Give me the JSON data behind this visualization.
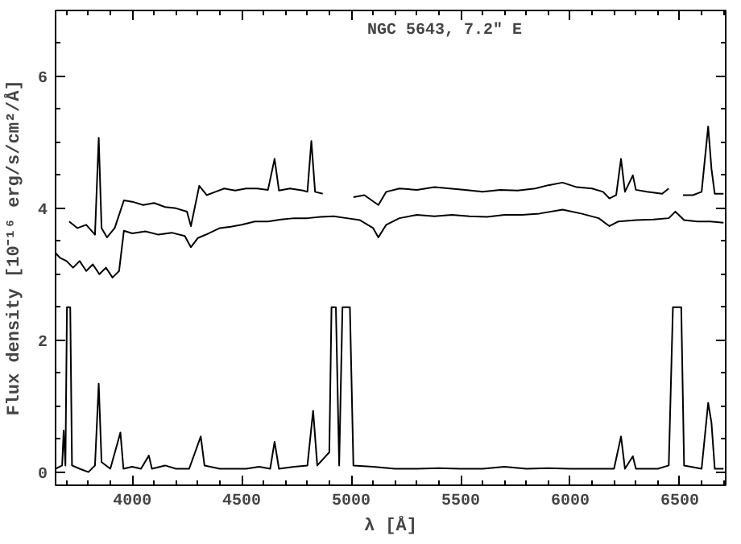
{
  "chart_data": {
    "type": "line",
    "annotations": [
      "NGC 5643, 7.2″ E"
    ],
    "xlabel": "λ [Å]",
    "ylabel": "Flux density [10⁻¹⁶ erg/s/cm²/Å]",
    "xlim": [
      3650,
      6710
    ],
    "ylim": [
      -0.2,
      7
    ],
    "xticks": [
      4000,
      4500,
      5000,
      5500,
      6000,
      6500
    ],
    "yticks": [
      0,
      2,
      4,
      6
    ],
    "grid": false,
    "marker": "none",
    "line_style": "solid",
    "series": [
      {
        "color": "#000000",
        "x": [
          3712,
          3750,
          3790,
          3830,
          3847,
          3860,
          3885,
          3920,
          3962,
          4000,
          4050,
          4100,
          4150,
          4200,
          4250,
          4268,
          4306,
          4340,
          4380,
          4420,
          4470,
          4520,
          4570,
          4620,
          4650,
          4670,
          4720,
          4780,
          4800,
          4818,
          4835,
          4870,
          4910,
          4925,
          4965,
          4990,
          5010,
          5060,
          5124,
          5160,
          5220,
          5300,
          5380,
          5450,
          5520,
          5600,
          5680,
          5760,
          5840,
          5900,
          5965,
          6030,
          6100,
          6150,
          6179,
          6210,
          6232,
          6250,
          6286,
          6300,
          6350,
          6420,
          6450,
          6465,
          6500,
          6515,
          6560,
          6600,
          6630,
          6645,
          6660,
          6700
        ],
        "values": [
          3.8,
          3.7,
          3.75,
          3.6,
          5.07,
          3.7,
          3.56,
          3.7,
          4.12,
          4.1,
          4.05,
          4.08,
          4.02,
          4.0,
          3.95,
          3.73,
          4.34,
          4.2,
          4.25,
          4.3,
          4.27,
          4.3,
          4.3,
          4.28,
          4.75,
          4.27,
          4.3,
          4.27,
          4.25,
          5.02,
          4.25,
          4.22,
          null,
          null,
          null,
          null,
          4.17,
          4.2,
          4.05,
          4.25,
          4.3,
          4.28,
          4.32,
          4.3,
          4.28,
          4.25,
          4.28,
          4.27,
          4.3,
          4.35,
          4.39,
          4.32,
          4.3,
          4.25,
          4.15,
          4.2,
          4.75,
          4.25,
          4.5,
          4.28,
          4.25,
          4.22,
          4.3,
          null,
          null,
          4.2,
          4.2,
          4.25,
          5.24,
          4.6,
          4.22,
          4.22
        ]
      },
      {
        "color": "#000000",
        "x": [
          3650,
          3670,
          3700,
          3730,
          3760,
          3790,
          3820,
          3850,
          3880,
          3910,
          3940,
          3962,
          4000,
          4060,
          4120,
          4180,
          4240,
          4268,
          4300,
          4350,
          4400,
          4450,
          4500,
          4560,
          4620,
          4680,
          4740,
          4800,
          4860,
          4920,
          4980,
          5040,
          5100,
          5124,
          5160,
          5220,
          5300,
          5380,
          5460,
          5540,
          5620,
          5700,
          5780,
          5860,
          5965,
          6050,
          6130,
          6179,
          6220,
          6300,
          6380,
          6450,
          6480,
          6520,
          6580,
          6640,
          6700
        ],
        "values": [
          3.32,
          3.25,
          3.2,
          3.1,
          3.2,
          3.05,
          3.15,
          3.0,
          3.1,
          2.95,
          3.05,
          3.66,
          3.62,
          3.65,
          3.6,
          3.63,
          3.58,
          3.41,
          3.55,
          3.62,
          3.7,
          3.72,
          3.75,
          3.8,
          3.8,
          3.83,
          3.85,
          3.85,
          3.87,
          3.88,
          3.85,
          3.82,
          3.7,
          3.56,
          3.75,
          3.85,
          3.9,
          3.88,
          3.9,
          3.88,
          3.87,
          3.9,
          3.9,
          3.92,
          3.98,
          3.92,
          3.85,
          3.73,
          3.8,
          3.82,
          3.83,
          3.85,
          3.95,
          3.82,
          3.8,
          3.8,
          3.78
        ]
      },
      {
        "color": "#000000",
        "x": [
          3650,
          3680,
          3687,
          3695,
          3702,
          3717,
          3725,
          3760,
          3800,
          3830,
          3847,
          3860,
          3900,
          3946,
          3960,
          4000,
          4040,
          4076,
          4090,
          4150,
          4200,
          4260,
          4313,
          4330,
          4400,
          4460,
          4520,
          4580,
          4630,
          4650,
          4670,
          4740,
          4800,
          4826,
          4845,
          4900,
          4910,
          4930,
          4945,
          4960,
          4994,
          5010,
          5100,
          5200,
          5300,
          5400,
          5500,
          5600,
          5700,
          5800,
          5900,
          6000,
          6100,
          6200,
          6232,
          6250,
          6286,
          6300,
          6400,
          6450,
          6469,
          6507,
          6520,
          6600,
          6630,
          6645,
          6660,
          6700
        ],
        "values": [
          0.05,
          0.1,
          0.63,
          0.1,
          2.5,
          2.5,
          0.1,
          0.05,
          0.0,
          0.1,
          1.34,
          0.15,
          0.05,
          0.6,
          0.05,
          0.08,
          0.05,
          0.25,
          0.05,
          0.1,
          0.05,
          0.05,
          0.54,
          0.1,
          0.05,
          0.05,
          0.05,
          0.08,
          0.05,
          0.46,
          0.05,
          0.08,
          0.1,
          0.93,
          0.1,
          0.3,
          2.5,
          2.5,
          0.1,
          2.5,
          2.5,
          0.1,
          0.08,
          0.05,
          0.05,
          0.06,
          0.05,
          0.05,
          0.08,
          0.05,
          0.06,
          0.05,
          0.05,
          0.05,
          0.54,
          0.05,
          0.24,
          0.05,
          0.05,
          0.1,
          2.5,
          2.5,
          0.1,
          0.05,
          1.05,
          0.75,
          0.05,
          0.05
        ]
      }
    ]
  }
}
